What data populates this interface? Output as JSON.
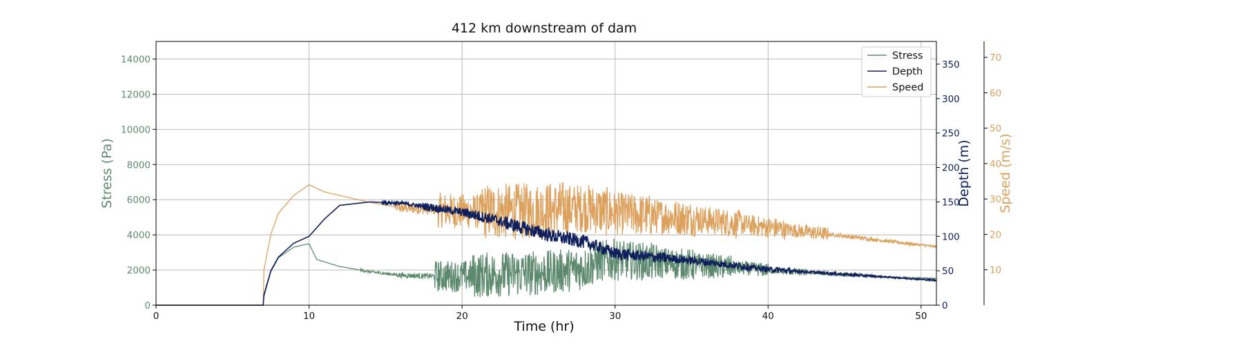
{
  "chart_data": {
    "type": "line",
    "title": "412 km downstream of dam",
    "xlabel": "Time (hr)",
    "xlim": [
      0,
      51
    ],
    "xticks": [
      0,
      10,
      20,
      30,
      40,
      50
    ],
    "grid": true,
    "legend_position": "top-right",
    "axes": {
      "stress": {
        "label": "Stress (Pa)",
        "lim": [
          0,
          15000
        ],
        "ticks": [
          0,
          2000,
          4000,
          6000,
          8000,
          10000,
          12000,
          14000
        ],
        "color": "#5d8a6e"
      },
      "depth": {
        "label": "Depth (m)",
        "lim": [
          0,
          383
        ],
        "ticks": [
          0,
          50,
          100,
          150,
          200,
          250,
          300,
          350
        ],
        "color": "#0f1f5c"
      },
      "speed": {
        "label": "Speed (m/s)",
        "lim": [
          0,
          74.5
        ],
        "ticks": [
          10,
          20,
          30,
          40,
          50,
          60,
          70
        ],
        "color": "#dda15e"
      }
    },
    "series": [
      {
        "name": "Stress",
        "axis": "stress",
        "color": "#5d8a6e",
        "noise": [
          0,
          0,
          0,
          0,
          0,
          0,
          80,
          150,
          900,
          1300,
          1300,
          1250,
          1200,
          1100,
          900,
          700,
          400,
          200,
          60,
          40,
          40,
          40
        ],
        "x": [
          0,
          7,
          7.05,
          7.5,
          8,
          9,
          10,
          10.5,
          12,
          14,
          16,
          18,
          20,
          22,
          24,
          26,
          28,
          29,
          30,
          35,
          40,
          45,
          51
        ],
        "y": [
          0,
          0,
          500,
          1900,
          2700,
          3300,
          3500,
          2600,
          2200,
          1900,
          1700,
          1650,
          1650,
          1750,
          1800,
          1900,
          2100,
          2500,
          2600,
          2300,
          2000,
          1700,
          1500
        ]
      },
      {
        "name": "Depth",
        "axis": "depth",
        "color": "#0f1f5c",
        "noise": [
          0,
          0,
          0,
          0,
          0,
          0,
          3,
          6,
          8,
          10,
          10,
          9,
          8,
          6,
          5,
          4,
          2,
          2,
          1,
          1
        ],
        "x": [
          0,
          7,
          7.05,
          7.5,
          8,
          9,
          10,
          11,
          12,
          14,
          16,
          18,
          20,
          22,
          24,
          26,
          28,
          30,
          35,
          40,
          45,
          51
        ],
        "y": [
          0,
          0,
          15,
          50,
          70,
          90,
          100,
          125,
          145,
          150,
          148,
          142,
          135,
          125,
          112,
          100,
          92,
          75,
          65,
          52,
          45,
          36
        ]
      },
      {
        "name": "Speed",
        "axis": "speed",
        "color": "#dda15e",
        "noise": [
          0,
          0,
          0,
          0,
          0,
          0,
          1.5,
          5,
          8,
          8,
          7,
          6,
          5,
          4,
          3,
          2,
          0.6,
          0.5,
          0.4
        ],
        "x": [
          0,
          7,
          7.05,
          7.5,
          8,
          9,
          10,
          11,
          12,
          14,
          16,
          18,
          20,
          22,
          24,
          26,
          28,
          30,
          35,
          40,
          45,
          51
        ],
        "y": [
          0,
          0,
          10,
          20,
          26,
          31,
          34,
          32,
          31,
          29,
          27.5,
          27,
          26.5,
          26.5,
          26.5,
          27,
          27.5,
          26,
          24.5,
          22,
          19.5,
          16.5
        ]
      }
    ]
  }
}
